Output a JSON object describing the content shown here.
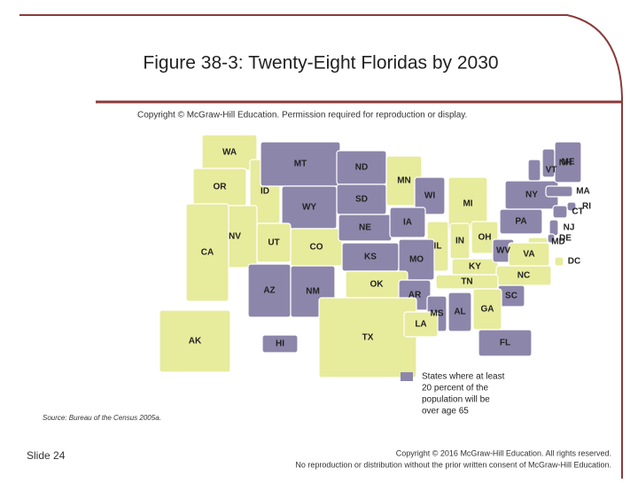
{
  "slide": {
    "title": "Figure 38-3: Twenty-Eight Floridas by 2030",
    "slide_number": "Slide 24",
    "footer": [
      "Copyright © 2016 McGraw-Hill Education. All rights reserved.",
      "No reproduction or distribution without the prior written consent of McGraw-Hill Education."
    ]
  },
  "map": {
    "copyright": "Copyright © McGraw-Hill Education. Permission required for reproduction or display.",
    "source": "Source: Bureau of the Census 2005a.",
    "highlight_color": "#8d86ab",
    "base_color": "#e7eb9c",
    "legend": [
      "States where at least",
      "20 percent of the",
      "population will be",
      "over age 65"
    ],
    "states": [
      {
        "label": "WA",
        "highlight": false
      },
      {
        "label": "OR",
        "highlight": false
      },
      {
        "label": "ID",
        "highlight": false
      },
      {
        "label": "MT",
        "highlight": true
      },
      {
        "label": "ND",
        "highlight": true
      },
      {
        "label": "SD",
        "highlight": true
      },
      {
        "label": "WY",
        "highlight": true
      },
      {
        "label": "MN",
        "highlight": false
      },
      {
        "label": "WI",
        "highlight": true
      },
      {
        "label": "MI",
        "highlight": false
      },
      {
        "label": "NV",
        "highlight": false
      },
      {
        "label": "UT",
        "highlight": false
      },
      {
        "label": "CO",
        "highlight": false
      },
      {
        "label": "NE",
        "highlight": true
      },
      {
        "label": "IA",
        "highlight": true
      },
      {
        "label": "IL",
        "highlight": false
      },
      {
        "label": "IN",
        "highlight": false
      },
      {
        "label": "OH",
        "highlight": false
      },
      {
        "label": "PA",
        "highlight": true
      },
      {
        "label": "NY",
        "highlight": true
      },
      {
        "label": "VT",
        "highlight": true
      },
      {
        "label": "NH",
        "highlight": true
      },
      {
        "label": "ME",
        "highlight": true
      },
      {
        "label": "MA",
        "highlight": true
      },
      {
        "label": "RI",
        "highlight": true
      },
      {
        "label": "CT",
        "highlight": true
      },
      {
        "label": "NJ",
        "highlight": true
      },
      {
        "label": "DE",
        "highlight": true
      },
      {
        "label": "MD",
        "highlight": false
      },
      {
        "label": "DC",
        "highlight": false
      },
      {
        "label": "CA",
        "highlight": false
      },
      {
        "label": "KS",
        "highlight": true
      },
      {
        "label": "MO",
        "highlight": true
      },
      {
        "label": "KY",
        "highlight": false
      },
      {
        "label": "WV",
        "highlight": true
      },
      {
        "label": "VA",
        "highlight": false
      },
      {
        "label": "NC",
        "highlight": false
      },
      {
        "label": "TN",
        "highlight": false
      },
      {
        "label": "AZ",
        "highlight": true
      },
      {
        "label": "NM",
        "highlight": true
      },
      {
        "label": "OK",
        "highlight": false
      },
      {
        "label": "AR",
        "highlight": true
      },
      {
        "label": "SC",
        "highlight": true
      },
      {
        "label": "MS",
        "highlight": true
      },
      {
        "label": "AL",
        "highlight": true
      },
      {
        "label": "GA",
        "highlight": false
      },
      {
        "label": "TX",
        "highlight": false
      },
      {
        "label": "LA",
        "highlight": false
      },
      {
        "label": "FL",
        "highlight": true
      },
      {
        "label": "AK",
        "highlight": false
      },
      {
        "label": "HI",
        "highlight": true
      }
    ]
  }
}
